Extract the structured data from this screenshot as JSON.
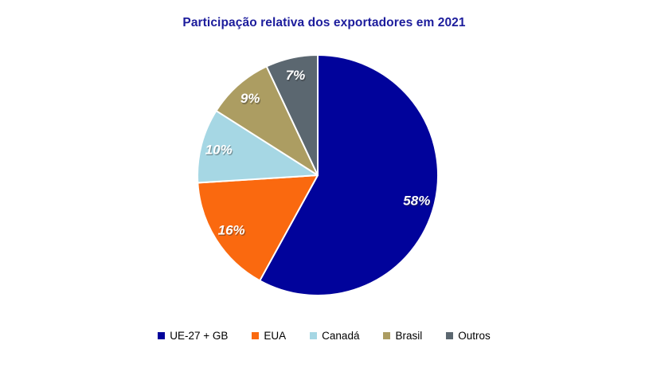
{
  "title": "Participação relativa dos exportadores em 2021",
  "chart_data": {
    "type": "pie",
    "title": "Participação relativa dos exportadores em 2021",
    "categories": [
      "UE-27 + GB",
      "EUA",
      "Canadá",
      "Brasil",
      "Outros"
    ],
    "values": [
      58,
      16,
      10,
      9,
      7
    ],
    "data_labels": [
      "58%",
      "16%",
      "10%",
      "9%",
      "7%"
    ],
    "colors": [
      "#01039b",
      "#fa690f",
      "#a6d7e4",
      "#ac9d62",
      "#5b6770"
    ],
    "start_angle_deg": 0,
    "direction": "clockwise",
    "legend_position": "bottom",
    "data_label_color": "#ffffff",
    "title_color": "#1c1c9c",
    "slice_border_color": "#ffffff"
  }
}
